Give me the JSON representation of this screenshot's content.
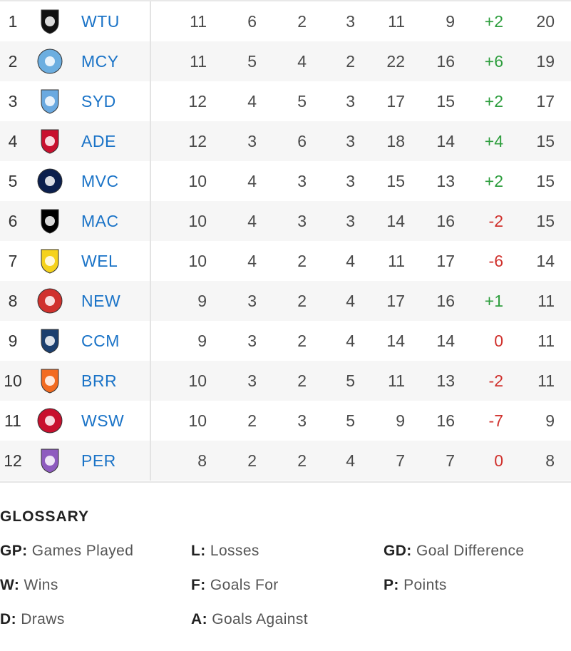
{
  "table": {
    "rows": [
      {
        "rank": "1",
        "team": "WTU",
        "gp": "11",
        "w": "6",
        "d": "2",
        "l": "3",
        "f": "11",
        "a": "9",
        "gd": "+2",
        "p": "20",
        "logo": "western-united-logo-icon",
        "color": "#111111"
      },
      {
        "rank": "2",
        "team": "MCY",
        "gp": "11",
        "w": "5",
        "d": "4",
        "l": "2",
        "f": "22",
        "a": "16",
        "gd": "+6",
        "p": "19",
        "logo": "melbourne-city-logo-icon",
        "color": "#6caee0"
      },
      {
        "rank": "3",
        "team": "SYD",
        "gp": "12",
        "w": "4",
        "d": "5",
        "l": "3",
        "f": "17",
        "a": "15",
        "gd": "+2",
        "p": "17",
        "logo": "sydney-fc-logo-icon",
        "color": "#6aa9e0"
      },
      {
        "rank": "4",
        "team": "ADE",
        "gp": "12",
        "w": "3",
        "d": "6",
        "l": "3",
        "f": "18",
        "a": "14",
        "gd": "+4",
        "p": "15",
        "logo": "adelaide-united-logo-icon",
        "color": "#c8102e"
      },
      {
        "rank": "5",
        "team": "MVC",
        "gp": "10",
        "w": "4",
        "d": "3",
        "l": "3",
        "f": "15",
        "a": "13",
        "gd": "+2",
        "p": "15",
        "logo": "melbourne-victory-logo-icon",
        "color": "#0b1f4d"
      },
      {
        "rank": "6",
        "team": "MAC",
        "gp": "10",
        "w": "4",
        "d": "3",
        "l": "3",
        "f": "14",
        "a": "16",
        "gd": "-2",
        "p": "15",
        "logo": "macarthur-fc-logo-icon",
        "color": "#000000"
      },
      {
        "rank": "7",
        "team": "WEL",
        "gp": "10",
        "w": "4",
        "d": "2",
        "l": "4",
        "f": "11",
        "a": "17",
        "gd": "-6",
        "p": "14",
        "logo": "wellington-phoenix-logo-icon",
        "color": "#f5d21c"
      },
      {
        "rank": "8",
        "team": "NEW",
        "gp": "9",
        "w": "3",
        "d": "2",
        "l": "4",
        "f": "17",
        "a": "16",
        "gd": "+1",
        "p": "11",
        "logo": "newcastle-jets-logo-icon",
        "color": "#d0312d"
      },
      {
        "rank": "9",
        "team": "CCM",
        "gp": "9",
        "w": "3",
        "d": "2",
        "l": "4",
        "f": "14",
        "a": "14",
        "gd": "0",
        "p": "11",
        "logo": "central-coast-mariners-logo-icon",
        "color": "#1c3f6e"
      },
      {
        "rank": "10",
        "team": "BRR",
        "gp": "10",
        "w": "3",
        "d": "2",
        "l": "5",
        "f": "11",
        "a": "13",
        "gd": "-2",
        "p": "11",
        "logo": "brisbane-roar-logo-icon",
        "color": "#f26b21"
      },
      {
        "rank": "11",
        "team": "WSW",
        "gp": "10",
        "w": "2",
        "d": "3",
        "l": "5",
        "f": "9",
        "a": "16",
        "gd": "-7",
        "p": "9",
        "logo": "western-sydney-wanderers-logo-icon",
        "color": "#c8102e"
      },
      {
        "rank": "12",
        "team": "PER",
        "gp": "8",
        "w": "2",
        "d": "2",
        "l": "4",
        "f": "7",
        "a": "7",
        "gd": "0",
        "p": "8",
        "logo": "perth-glory-logo-icon",
        "color": "#8e5bbf"
      }
    ]
  },
  "glossary": {
    "title": "GLOSSARY",
    "items": [
      {
        "abbr": "GP:",
        "text": "Games Played"
      },
      {
        "abbr": "W:",
        "text": "Wins"
      },
      {
        "abbr": "D:",
        "text": "Draws"
      },
      {
        "abbr": "L:",
        "text": "Losses"
      },
      {
        "abbr": "F:",
        "text": "Goals For"
      },
      {
        "abbr": "A:",
        "text": "Goals Against"
      },
      {
        "abbr": "GD:",
        "text": "Goal Difference"
      },
      {
        "abbr": "P:",
        "text": "Points"
      }
    ]
  },
  "colors": {
    "positive": "#2e9e3e",
    "negative": "#d0312d",
    "team_link": "#1a73c7"
  }
}
